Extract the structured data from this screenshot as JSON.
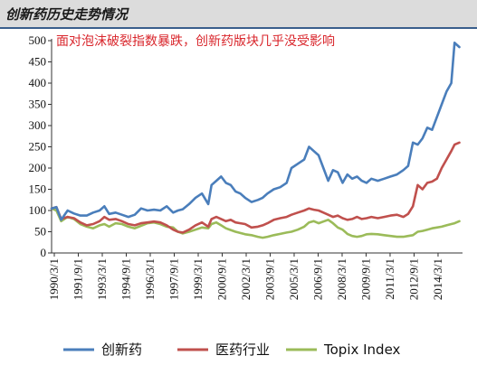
{
  "header": {
    "title": "创新药历史走势情况"
  },
  "chart_data": {
    "type": "line",
    "title": "",
    "annotation": "面对泡沫破裂指数暴跌，创新药版块几乎没受影响",
    "xlabel": "",
    "ylabel": "",
    "ylim": [
      0,
      500
    ],
    "yticks": [
      0,
      50,
      100,
      150,
      200,
      250,
      300,
      350,
      400,
      450,
      500
    ],
    "xlim": [
      1990.0,
      2015.7
    ],
    "xticks": [
      {
        "label": "1990/3/1",
        "value": 1990.17
      },
      {
        "label": "1991/9/1",
        "value": 1991.67
      },
      {
        "label": "1993/3/1",
        "value": 1993.17
      },
      {
        "label": "1994/9/1",
        "value": 1994.67
      },
      {
        "label": "1996/3/1",
        "value": 1996.17
      },
      {
        "label": "1997/9/1",
        "value": 1997.67
      },
      {
        "label": "1999/3/1",
        "value": 1999.17
      },
      {
        "label": "2000/9/1",
        "value": 2000.67
      },
      {
        "label": "2002/3/1",
        "value": 2002.17
      },
      {
        "label": "2003/9/1",
        "value": 2003.67
      },
      {
        "label": "2005/3/1",
        "value": 2005.17
      },
      {
        "label": "2006/9/1",
        "value": 2006.67
      },
      {
        "label": "2008/3/1",
        "value": 2008.17
      },
      {
        "label": "2009/9/1",
        "value": 2009.67
      },
      {
        "label": "2011/3/1",
        "value": 2011.17
      },
      {
        "label": "2012/9/1",
        "value": 2012.67
      },
      {
        "label": "2014/3/1",
        "value": 2014.17
      }
    ],
    "grid": false,
    "legend_position": "bottom",
    "series": [
      {
        "name": "创新药",
        "color": "#4a7ebb",
        "x": [
          1990.0,
          1990.3,
          1990.6,
          1991.0,
          1991.4,
          1991.8,
          1992.2,
          1992.6,
          1993.0,
          1993.3,
          1993.6,
          1994.0,
          1994.4,
          1994.8,
          1995.2,
          1995.6,
          1996.0,
          1996.4,
          1996.8,
          1997.2,
          1997.6,
          1997.9,
          1998.2,
          1998.6,
          1999.0,
          1999.4,
          1999.8,
          2000.0,
          2000.3,
          2000.6,
          2000.9,
          2001.2,
          2001.5,
          2001.8,
          2002.1,
          2002.5,
          2002.9,
          2003.2,
          2003.5,
          2003.9,
          2004.3,
          2004.7,
          2005.0,
          2005.4,
          2005.8,
          2006.1,
          2006.4,
          2006.7,
          2007.0,
          2007.3,
          2007.6,
          2007.9,
          2008.2,
          2008.5,
          2008.8,
          2009.1,
          2009.4,
          2009.7,
          2010.0,
          2010.4,
          2010.8,
          2011.2,
          2011.6,
          2012.0,
          2012.3,
          2012.6,
          2012.9,
          2013.2,
          2013.5,
          2013.8,
          2014.1,
          2014.4,
          2014.7,
          2015.0,
          2015.2,
          2015.5
        ],
        "values": [
          105,
          108,
          78,
          100,
          93,
          88,
          88,
          95,
          100,
          110,
          92,
          95,
          90,
          85,
          90,
          105,
          100,
          102,
          100,
          110,
          95,
          100,
          103,
          115,
          130,
          140,
          115,
          160,
          170,
          180,
          165,
          160,
          145,
          140,
          130,
          120,
          125,
          130,
          140,
          150,
          155,
          165,
          200,
          210,
          220,
          250,
          240,
          230,
          200,
          170,
          195,
          190,
          165,
          185,
          175,
          180,
          170,
          165,
          175,
          170,
          175,
          180,
          185,
          195,
          205,
          260,
          255,
          270,
          295,
          290,
          320,
          350,
          380,
          400,
          495,
          485
        ]
      },
      {
        "name": "医药行业",
        "color": "#c0504d",
        "x": [
          1990.0,
          1990.3,
          1990.6,
          1991.0,
          1991.4,
          1991.8,
          1992.2,
          1992.6,
          1993.0,
          1993.3,
          1993.6,
          1994.0,
          1994.4,
          1994.8,
          1995.2,
          1995.6,
          1996.0,
          1996.4,
          1996.8,
          1997.2,
          1997.6,
          1997.9,
          1998.2,
          1998.6,
          1999.0,
          1999.4,
          1999.8,
          2000.0,
          2000.3,
          2000.6,
          2000.9,
          2001.2,
          2001.5,
          2001.8,
          2002.1,
          2002.5,
          2002.9,
          2003.2,
          2003.5,
          2003.9,
          2004.3,
          2004.7,
          2005.0,
          2005.4,
          2005.8,
          2006.1,
          2006.4,
          2006.7,
          2007.0,
          2007.3,
          2007.6,
          2007.9,
          2008.2,
          2008.5,
          2008.8,
          2009.1,
          2009.4,
          2009.7,
          2010.0,
          2010.4,
          2010.8,
          2011.2,
          2011.6,
          2012.0,
          2012.3,
          2012.6,
          2012.9,
          2013.2,
          2013.5,
          2013.8,
          2014.1,
          2014.4,
          2014.7,
          2015.0,
          2015.2,
          2015.5
        ],
        "values": [
          105,
          108,
          80,
          85,
          82,
          72,
          65,
          68,
          75,
          85,
          78,
          80,
          75,
          68,
          65,
          70,
          72,
          74,
          72,
          65,
          55,
          50,
          48,
          55,
          65,
          72,
          62,
          80,
          85,
          80,
          75,
          78,
          72,
          70,
          68,
          60,
          62,
          65,
          70,
          78,
          82,
          85,
          90,
          95,
          100,
          105,
          102,
          100,
          95,
          90,
          85,
          88,
          82,
          78,
          80,
          85,
          80,
          82,
          85,
          82,
          85,
          88,
          90,
          85,
          92,
          110,
          160,
          150,
          165,
          168,
          175,
          200,
          220,
          240,
          255,
          260
        ]
      },
      {
        "name": "Topix Index",
        "color": "#9bbb59",
        "x": [
          1990.0,
          1990.3,
          1990.6,
          1991.0,
          1991.4,
          1991.8,
          1992.2,
          1992.6,
          1993.0,
          1993.3,
          1993.6,
          1994.0,
          1994.4,
          1994.8,
          1995.2,
          1995.6,
          1996.0,
          1996.4,
          1996.8,
          1997.2,
          1997.6,
          1997.9,
          1998.2,
          1998.6,
          1999.0,
          1999.4,
          1999.8,
          2000.0,
          2000.3,
          2000.6,
          2000.9,
          2001.2,
          2001.5,
          2001.8,
          2002.1,
          2002.5,
          2002.9,
          2003.2,
          2003.5,
          2003.9,
          2004.3,
          2004.7,
          2005.0,
          2005.4,
          2005.8,
          2006.1,
          2006.4,
          2006.7,
          2007.0,
          2007.3,
          2007.6,
          2007.9,
          2008.2,
          2008.5,
          2008.8,
          2009.1,
          2009.4,
          2009.7,
          2010.0,
          2010.4,
          2010.8,
          2011.2,
          2011.6,
          2012.0,
          2012.3,
          2012.6,
          2012.9,
          2013.2,
          2013.5,
          2013.8,
          2014.1,
          2014.4,
          2014.7,
          2015.0,
          2015.2,
          2015.5
        ],
        "values": [
          105,
          100,
          75,
          85,
          80,
          68,
          62,
          58,
          65,
          68,
          62,
          70,
          68,
          62,
          58,
          64,
          70,
          72,
          68,
          62,
          60,
          50,
          46,
          50,
          55,
          60,
          58,
          68,
          72,
          65,
          58,
          54,
          50,
          47,
          44,
          42,
          38,
          36,
          38,
          42,
          45,
          48,
          50,
          55,
          62,
          72,
          75,
          70,
          74,
          78,
          70,
          60,
          55,
          45,
          40,
          38,
          40,
          44,
          45,
          44,
          42,
          40,
          38,
          38,
          40,
          42,
          50,
          52,
          55,
          58,
          60,
          62,
          65,
          68,
          70,
          75
        ]
      }
    ]
  }
}
